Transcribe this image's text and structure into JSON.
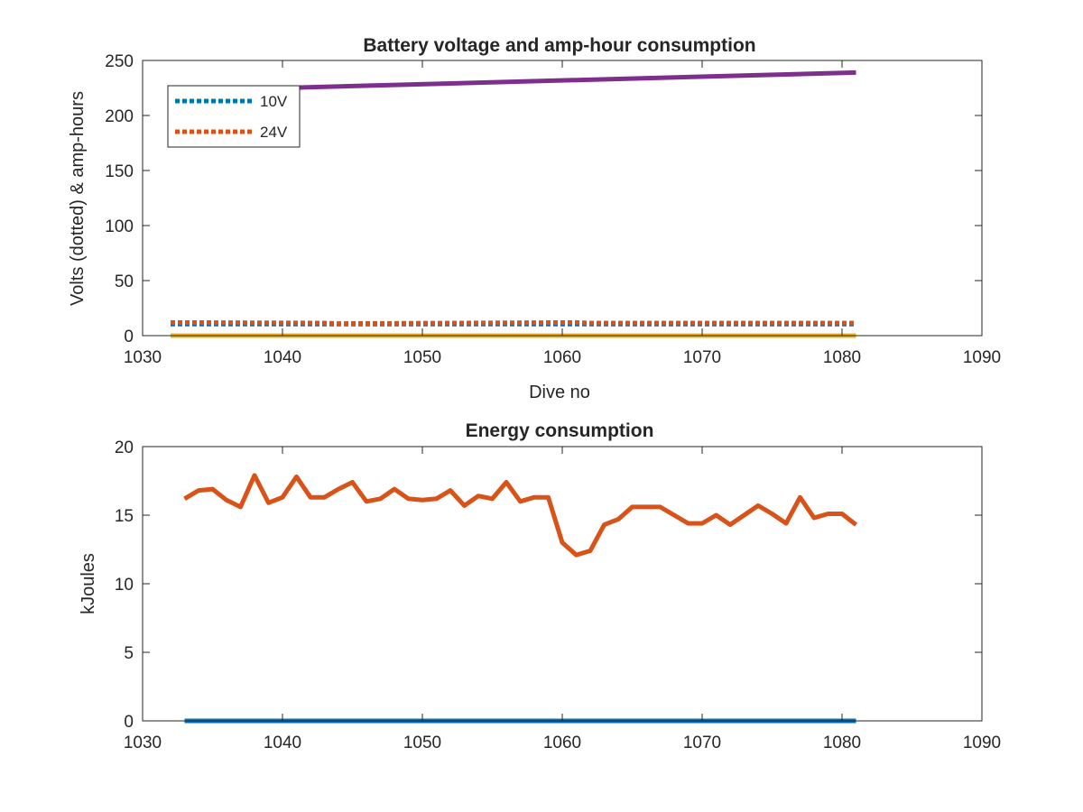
{
  "chart_data": [
    {
      "type": "line",
      "title": "Battery voltage and amp-hour consumption",
      "xlabel": "Dive no",
      "ylabel": "Volts (dotted) & amp-hours",
      "xlim": [
        1030,
        1090
      ],
      "ylim": [
        0,
        250
      ],
      "xticks": [
        1030,
        1040,
        1050,
        1060,
        1070,
        1080,
        1090
      ],
      "yticks": [
        0,
        50,
        100,
        150,
        200,
        250
      ],
      "grid": false,
      "legend_position": "top-left",
      "series": [
        {
          "name": "10V",
          "style": "dotted",
          "color": "#0072BD",
          "x": [
            1032,
            1081
          ],
          "y": [
            10.5,
            10.5
          ]
        },
        {
          "name": "24V",
          "style": "dotted",
          "color": "#D95319",
          "x": [
            1032,
            1043,
            1044,
            1061,
            1062,
            1081
          ],
          "y": [
            12,
            11.5,
            11,
            12,
            11.5,
            11.5
          ]
        },
        {
          "style": "solid",
          "color": "#EDB120",
          "x": [
            1032,
            1081
          ],
          "y": [
            0,
            0
          ]
        },
        {
          "style": "solid",
          "color": "#7E2F8E",
          "x": [
            1040,
            1081
          ],
          "y": [
            225,
            239
          ]
        }
      ]
    },
    {
      "type": "line",
      "title": "Energy consumption",
      "xlabel": "",
      "ylabel": "kJoules",
      "xlim": [
        1030,
        1090
      ],
      "ylim": [
        0,
        20
      ],
      "xticks": [
        1030,
        1040,
        1050,
        1060,
        1070,
        1080,
        1090
      ],
      "yticks": [
        0,
        5,
        10,
        15,
        20
      ],
      "grid": false,
      "series": [
        {
          "style": "solid",
          "color": "#0072BD",
          "x": [
            1033,
            1081
          ],
          "y": [
            0,
            0
          ]
        },
        {
          "style": "solid",
          "color": "#D95319",
          "x": [
            1033,
            1034,
            1035,
            1036,
            1037,
            1038,
            1039,
            1040,
            1041,
            1042,
            1043,
            1044,
            1045,
            1046,
            1047,
            1048,
            1049,
            1050,
            1051,
            1052,
            1053,
            1054,
            1055,
            1056,
            1057,
            1058,
            1059,
            1060,
            1061,
            1062,
            1063,
            1064,
            1065,
            1066,
            1067,
            1068,
            1069,
            1070,
            1071,
            1072,
            1073,
            1074,
            1075,
            1076,
            1077,
            1078,
            1079,
            1080,
            1081
          ],
          "y": [
            16.2,
            16.8,
            16.9,
            16.1,
            15.6,
            17.9,
            15.9,
            16.3,
            17.8,
            16.3,
            16.3,
            16.9,
            17.4,
            16.0,
            16.2,
            16.9,
            16.2,
            16.1,
            16.2,
            16.8,
            15.7,
            16.4,
            16.2,
            17.4,
            16.0,
            16.3,
            16.3,
            13.0,
            12.1,
            12.4,
            14.3,
            14.7,
            15.6,
            15.6,
            15.6,
            15.0,
            14.4,
            14.4,
            15.0,
            14.3,
            15.0,
            15.7,
            15.1,
            14.4,
            16.3,
            14.8,
            15.1,
            15.1,
            14.3
          ]
        }
      ]
    }
  ]
}
